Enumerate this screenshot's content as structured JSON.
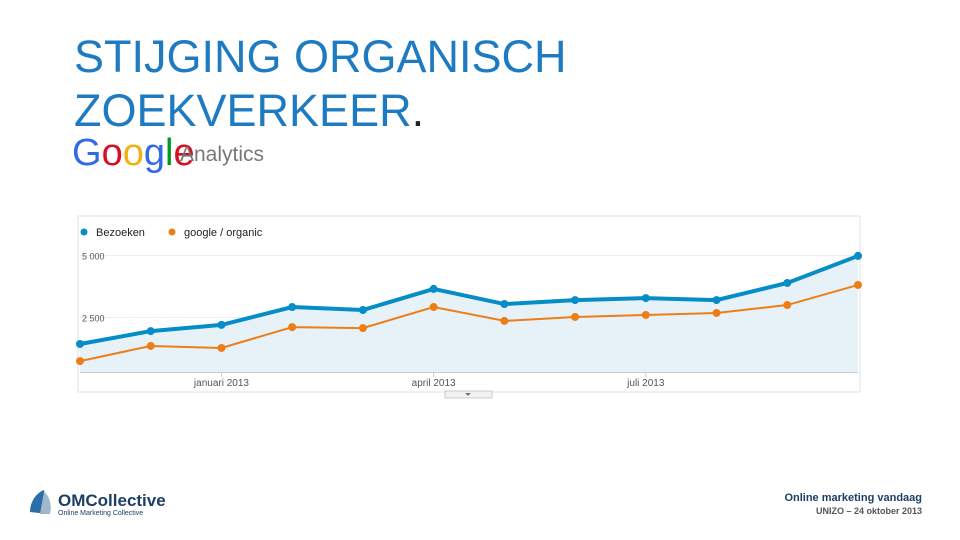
{
  "slide": {
    "title": [
      "STIJGING ORGANISCH",
      "ZOEKVERKEER"
    ],
    "title_end": ".",
    "logo_word": "Google",
    "logo_product": "Analytics",
    "company": "OMCollective",
    "company_tagline": "Online Marketing Collective",
    "footer_title": "Online marketing vandaag",
    "footer_subtitle": "UNIZO – 24 oktober 2013"
  },
  "chart_data": {
    "type": "line",
    "categories": [
      null,
      null,
      "januari 2013",
      null,
      null,
      "april 2013",
      null,
      null,
      "juli 2013",
      null,
      null,
      null
    ],
    "series": [
      {
        "name": "Bezoeken",
        "color": "#058dc7",
        "values": [
          1430,
          1950,
          2200,
          2920,
          2800,
          3650,
          3040,
          3200,
          3280,
          3200,
          3890,
          4980
        ]
      },
      {
        "name": "google / organic",
        "color": "#ed7e17",
        "values": [
          740,
          1350,
          1270,
          2110,
          2070,
          2920,
          2360,
          2520,
          2600,
          2680,
          3000,
          3810
        ]
      }
    ],
    "ylim": [
      300,
      5300
    ],
    "yticks": [
      {
        "value": 2500,
        "label": "2 500"
      },
      {
        "value": 5000,
        "label": "5 000"
      }
    ],
    "grid": true,
    "legend": "top-left",
    "area": "#e6f1f8"
  }
}
